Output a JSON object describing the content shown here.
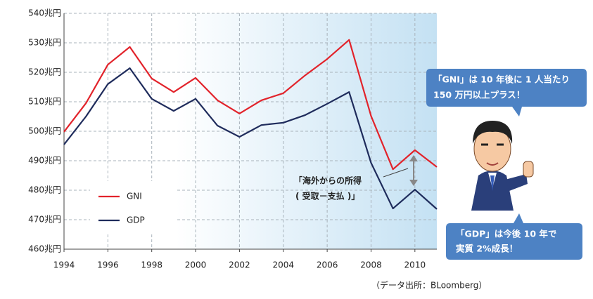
{
  "chart_data": {
    "type": "line",
    "x": [
      1994,
      1995,
      1996,
      1997,
      1998,
      1999,
      2000,
      2001,
      2002,
      2003,
      2004,
      2005,
      2006,
      2007,
      2008,
      2009,
      2010,
      2011
    ],
    "series": [
      {
        "name": "GNI",
        "color": "#e2232b",
        "values": [
          499.8,
          509.5,
          522.6,
          528.6,
          517.9,
          513.3,
          518.1,
          510.5,
          506,
          510.5,
          512.9,
          519,
          524.5,
          531,
          505.2,
          487.1,
          493.6,
          487.9
        ]
      },
      {
        "name": "GDP",
        "color": "#1f2c5c",
        "values": [
          495.5,
          505,
          516,
          521.4,
          511,
          506.9,
          511,
          501.9,
          498.1,
          502.1,
          502.9,
          505.5,
          509.3,
          513.3,
          489.3,
          473.8,
          480.2,
          473.6
        ]
      }
    ],
    "xlim": [
      1994,
      2011
    ],
    "xticks": [
      1994,
      1996,
      1998,
      2000,
      2002,
      2004,
      2006,
      2008,
      2010
    ],
    "ylim": [
      460,
      540
    ],
    "yticks": [
      {
        "value": 460,
        "label": "460兆円"
      },
      {
        "value": 470,
        "label": "470兆円"
      },
      {
        "value": 480,
        "label": "480兆円"
      },
      {
        "value": 490,
        "label": "490兆円"
      },
      {
        "value": 500,
        "label": "500兆円"
      },
      {
        "value": 510,
        "label": "510兆円"
      },
      {
        "value": 520,
        "label": "520兆円"
      },
      {
        "value": 530,
        "label": "530兆円"
      },
      {
        "value": 540,
        "label": "540兆円"
      }
    ],
    "grid": true,
    "legend": "lower left",
    "annotation": [
      "「海外からの所得",
      "( 受取－支払 )」"
    ],
    "source": "（データ出所：BLoomberg）",
    "callouts": [
      [
        "「GNI」は 10 年後に 1 人当たり",
        "150 万円以上プラス！"
      ],
      [
        "「GDP」は今後 10 年で",
        "実質 2%成長！"
      ]
    ]
  }
}
